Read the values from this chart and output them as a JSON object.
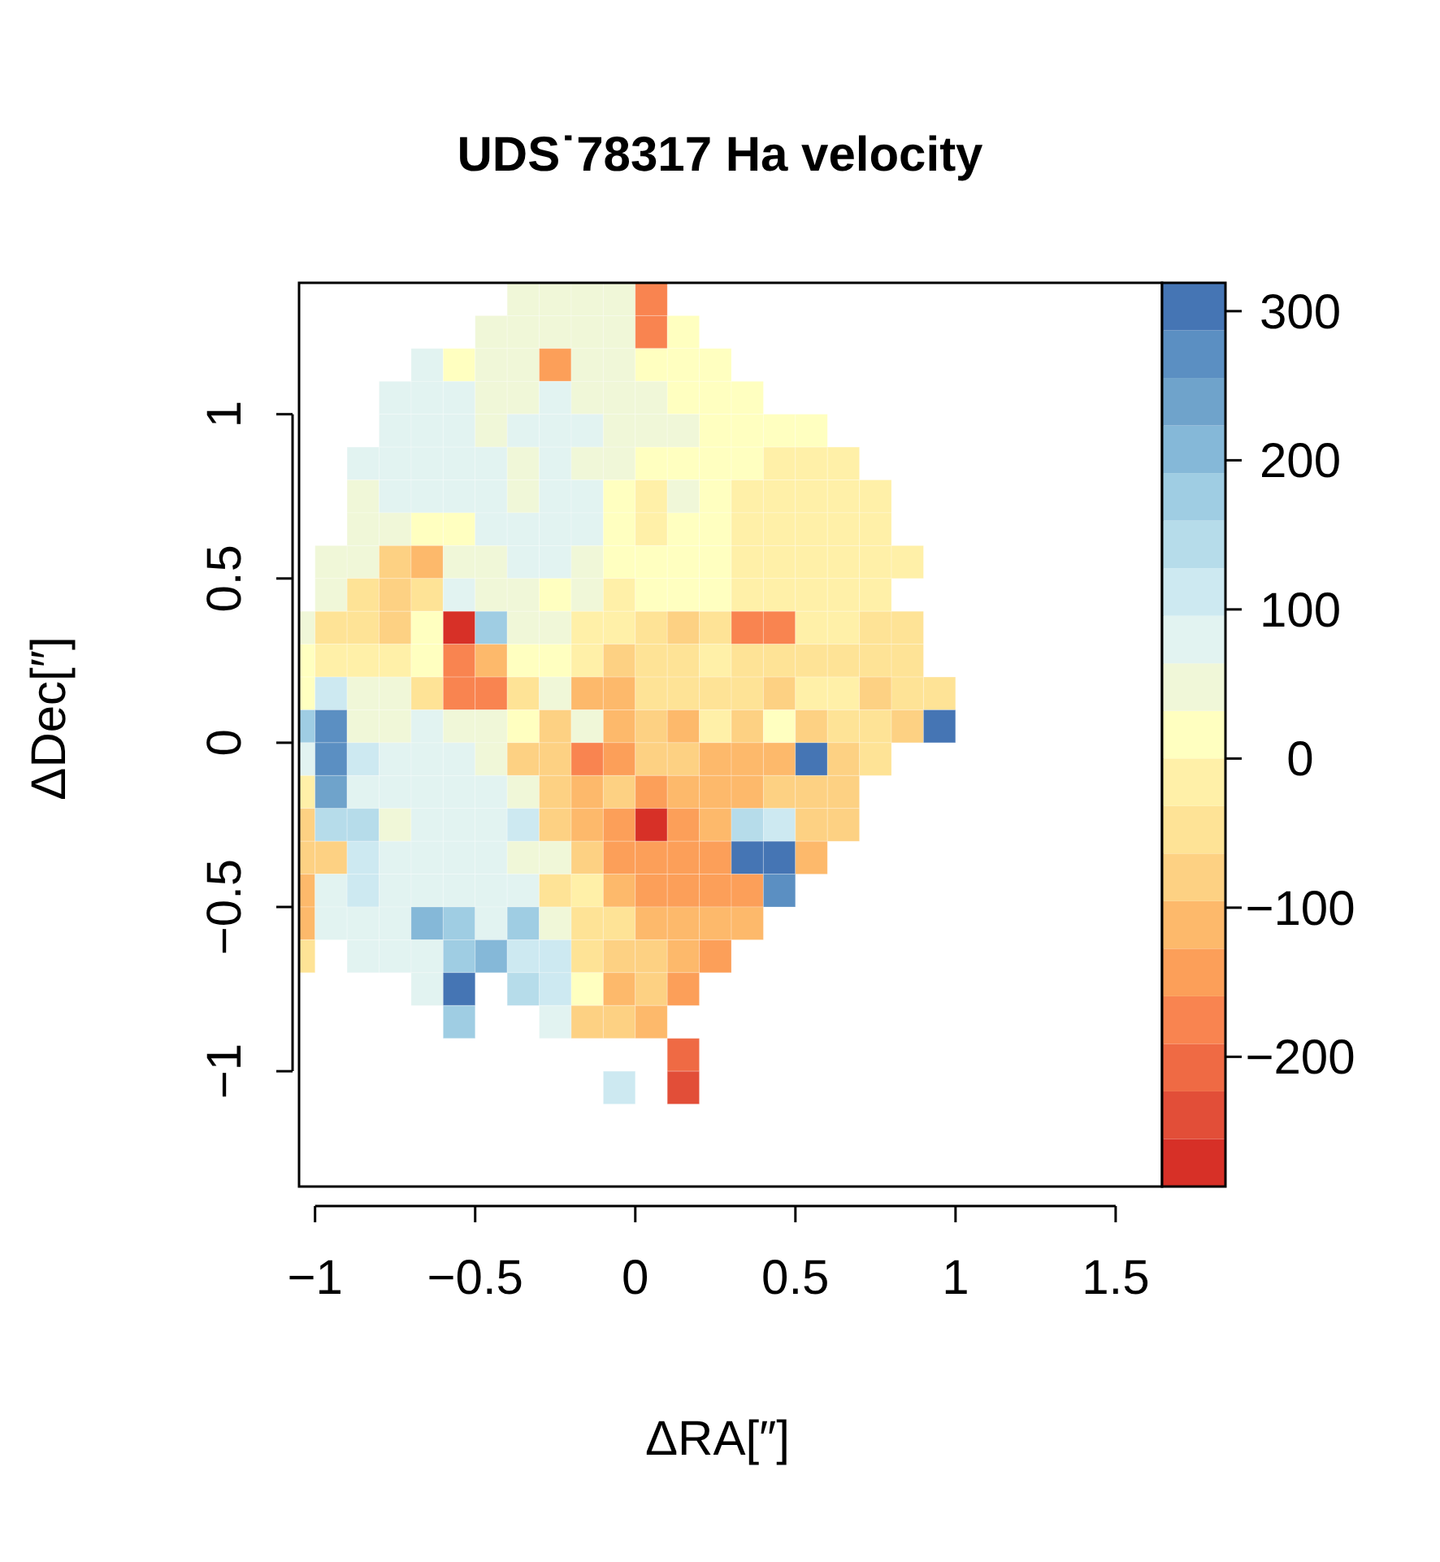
{
  "chart_data": {
    "type": "heatmap",
    "title": "UDS˙78317 Ha velocity",
    "xlabel": "ΔRA[″]",
    "ylabel": "ΔDec[″]",
    "x": [
      -1.05,
      -0.95,
      -0.85,
      -0.75,
      -0.65,
      -0.55,
      -0.45,
      -0.35,
      -0.25,
      -0.15,
      -0.05,
      0.05,
      0.15,
      0.25,
      0.35,
      0.45,
      0.55,
      0.65,
      0.75,
      0.85,
      0.95
    ],
    "y": [
      1.35,
      1.25,
      1.15,
      1.05,
      0.95,
      0.85,
      0.75,
      0.65,
      0.55,
      0.45,
      0.35,
      0.25,
      0.15,
      0.05,
      -0.05,
      -0.15,
      -0.25,
      -0.35,
      -0.45,
      -0.55,
      -0.65,
      -0.75,
      -0.85,
      -0.95,
      -1.05
    ],
    "cells": [
      [
        null,
        null,
        null,
        null,
        null,
        null,
        null,
        50,
        50,
        50,
        50,
        -175,
        null,
        null,
        null,
        null,
        null,
        null,
        null,
        null,
        null
      ],
      [
        null,
        null,
        null,
        null,
        null,
        null,
        50,
        50,
        50,
        50,
        50,
        -175,
        15,
        null,
        null,
        null,
        null,
        null,
        null,
        null,
        null
      ],
      [
        null,
        null,
        null,
        null,
        80,
        15,
        50,
        50,
        -145,
        50,
        50,
        15,
        15,
        15,
        null,
        null,
        null,
        null,
        null,
        null,
        null
      ],
      [
        null,
        null,
        null,
        80,
        80,
        80,
        50,
        50,
        80,
        50,
        50,
        50,
        15,
        15,
        15,
        null,
        null,
        null,
        null,
        null,
        null
      ],
      [
        null,
        null,
        null,
        80,
        80,
        80,
        50,
        80,
        80,
        80,
        50,
        50,
        50,
        15,
        15,
        15,
        15,
        null,
        null,
        null,
        null
      ],
      [
        null,
        null,
        80,
        80,
        80,
        80,
        80,
        50,
        80,
        50,
        50,
        15,
        15,
        15,
        15,
        -15,
        -15,
        -15,
        null,
        null,
        null
      ],
      [
        null,
        null,
        50,
        80,
        80,
        80,
        80,
        50,
        80,
        80,
        15,
        -15,
        50,
        15,
        -15,
        -15,
        -15,
        -15,
        -15,
        null,
        null
      ],
      [
        null,
        null,
        50,
        50,
        15,
        15,
        80,
        80,
        80,
        80,
        15,
        -15,
        15,
        15,
        -15,
        -15,
        -15,
        -15,
        -15,
        null,
        null
      ],
      [
        null,
        50,
        50,
        -80,
        -112,
        50,
        50,
        80,
        80,
        50,
        15,
        15,
        15,
        15,
        -15,
        -15,
        -15,
        -15,
        -15,
        -15,
        null
      ],
      [
        null,
        50,
        -50,
        -80,
        -50,
        80,
        50,
        50,
        15,
        50,
        -15,
        15,
        15,
        15,
        -15,
        -15,
        -15,
        -15,
        -15,
        null,
        null
      ],
      [
        50,
        -50,
        -50,
        -80,
        15,
        -270,
        175,
        50,
        50,
        -15,
        -15,
        -50,
        -80,
        -50,
        -175,
        -175,
        -15,
        -15,
        -50,
        -50,
        null
      ],
      [
        15,
        -15,
        -15,
        -15,
        15,
        -175,
        -112,
        15,
        15,
        -15,
        -80,
        -50,
        -50,
        -15,
        -50,
        -50,
        -50,
        -50,
        -50,
        -50,
        null
      ],
      [
        15,
        110,
        50,
        50,
        -50,
        -175,
        -175,
        -50,
        50,
        -112,
        -112,
        -50,
        -50,
        -50,
        -50,
        -80,
        -15,
        -15,
        -80,
        -50,
        -50
      ],
      [
        175,
        270,
        50,
        50,
        80,
        50,
        50,
        15,
        -80,
        50,
        -112,
        -80,
        -112,
        -15,
        -80,
        15,
        -80,
        -50,
        -50,
        -80,
        300
      ],
      [
        80,
        270,
        110,
        80,
        80,
        80,
        50,
        -80,
        -80,
        -175,
        -145,
        -80,
        -80,
        -112,
        -112,
        -112,
        300,
        -80,
        -50,
        null,
        null
      ],
      [
        -15,
        240,
        80,
        80,
        80,
        80,
        80,
        50,
        -80,
        -112,
        -80,
        -145,
        -112,
        -112,
        -112,
        -80,
        -80,
        -80,
        null,
        null,
        null
      ],
      [
        -80,
        145,
        145,
        50,
        80,
        80,
        80,
        110,
        -80,
        -112,
        -145,
        -270,
        -145,
        -112,
        145,
        110,
        -80,
        -80,
        null,
        null,
        null
      ],
      [
        -80,
        -80,
        110,
        80,
        80,
        80,
        80,
        50,
        50,
        -80,
        -145,
        -145,
        -145,
        -145,
        300,
        300,
        -112,
        null,
        null,
        null,
        null
      ],
      [
        -112,
        80,
        110,
        80,
        80,
        80,
        80,
        80,
        -50,
        -15,
        -112,
        -145,
        -145,
        -145,
        -145,
        270,
        null,
        null,
        null,
        null,
        null
      ],
      [
        -112,
        80,
        80,
        80,
        210,
        175,
        80,
        175,
        50,
        -50,
        -50,
        -112,
        -112,
        -112,
        -112,
        null,
        null,
        null,
        null,
        null,
        null
      ],
      [
        -50,
        null,
        80,
        80,
        80,
        175,
        210,
        110,
        110,
        -50,
        -80,
        -80,
        -112,
        -145,
        null,
        null,
        null,
        null,
        null,
        null,
        null
      ],
      [
        null,
        null,
        null,
        null,
        80,
        300,
        null,
        145,
        110,
        15,
        -112,
        -80,
        -145,
        null,
        null,
        null,
        null,
        null,
        null,
        null,
        null
      ],
      [
        null,
        null,
        null,
        null,
        null,
        175,
        null,
        null,
        80,
        -80,
        -80,
        -112,
        null,
        null,
        null,
        null,
        null,
        null,
        null,
        null,
        null
      ],
      [
        null,
        null,
        null,
        null,
        null,
        null,
        null,
        null,
        null,
        null,
        null,
        null,
        -210,
        null,
        null,
        null,
        null,
        null,
        null,
        null,
        null
      ],
      [
        null,
        null,
        null,
        null,
        null,
        null,
        null,
        null,
        null,
        null,
        110,
        null,
        -240,
        null,
        null,
        null,
        null,
        null,
        null,
        null,
        null
      ]
    ],
    "colors": [
      "#d73027",
      "#e24e38",
      "#ef6a44",
      "#f98450",
      "#fc9f59",
      "#fdb96b",
      "#fdd183",
      "#fee396",
      "#fff0a8",
      "#ffffc0",
      "#f0f7d8",
      "#e2f3f1",
      "#cde9f1",
      "#b6dcea",
      "#9fcde3",
      "#85b8d8",
      "#6fa3cb",
      "#5b8fc2",
      "#4575b4"
    ],
    "xlim": [
      -1.05,
      1.645
    ],
    "ylim": [
      -1.351,
      1.4
    ],
    "clim": [
      -287,
      319
    ],
    "xticks": [
      {
        "value": -1,
        "label": "−1"
      },
      {
        "value": -0.5,
        "label": "−0.5"
      },
      0,
      0.5,
      1,
      1.5
    ],
    "yticks": [
      {
        "value": -1,
        "label": "−1"
      },
      {
        "value": -0.5,
        "label": "−0.5"
      },
      0,
      0.5,
      1
    ],
    "cticks": [
      {
        "value": -200,
        "label": "−200"
      },
      {
        "value": -100,
        "label": "−100"
      },
      0,
      100,
      200,
      300
    ]
  }
}
